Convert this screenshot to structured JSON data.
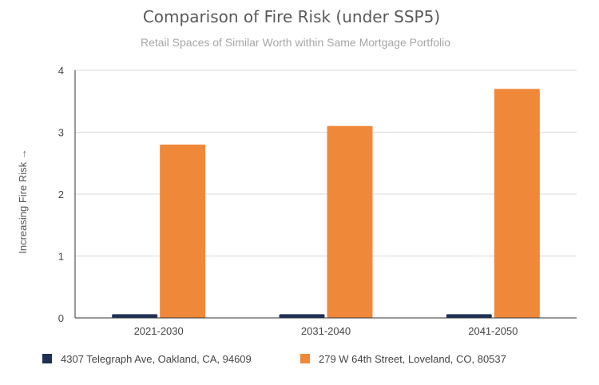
{
  "chart_data": {
    "type": "bar",
    "title": "Comparison of Fire Risk (under SSP5)",
    "subtitle": "Retail Spaces of Similar Worth within Same Mortgage Portfolio",
    "ylabel": "Increasing Fire Risk →",
    "xlabel": "",
    "categories": [
      "2021-2030",
      "2031-2040",
      "2041-2050"
    ],
    "ylim": [
      0,
      4
    ],
    "yticks": [
      0,
      1,
      2,
      3,
      4
    ],
    "grid": true,
    "legend_position": "bottom",
    "series": [
      {
        "name": "4307 Telegraph Ave, Oakland, CA, 94609",
        "color": "#1f3056",
        "values": [
          0.06,
          0.06,
          0.06
        ]
      },
      {
        "name": "279 W 64th Street, Loveland, CO, 80537",
        "color": "#f0883a",
        "values": [
          2.8,
          3.1,
          3.7
        ]
      }
    ]
  }
}
